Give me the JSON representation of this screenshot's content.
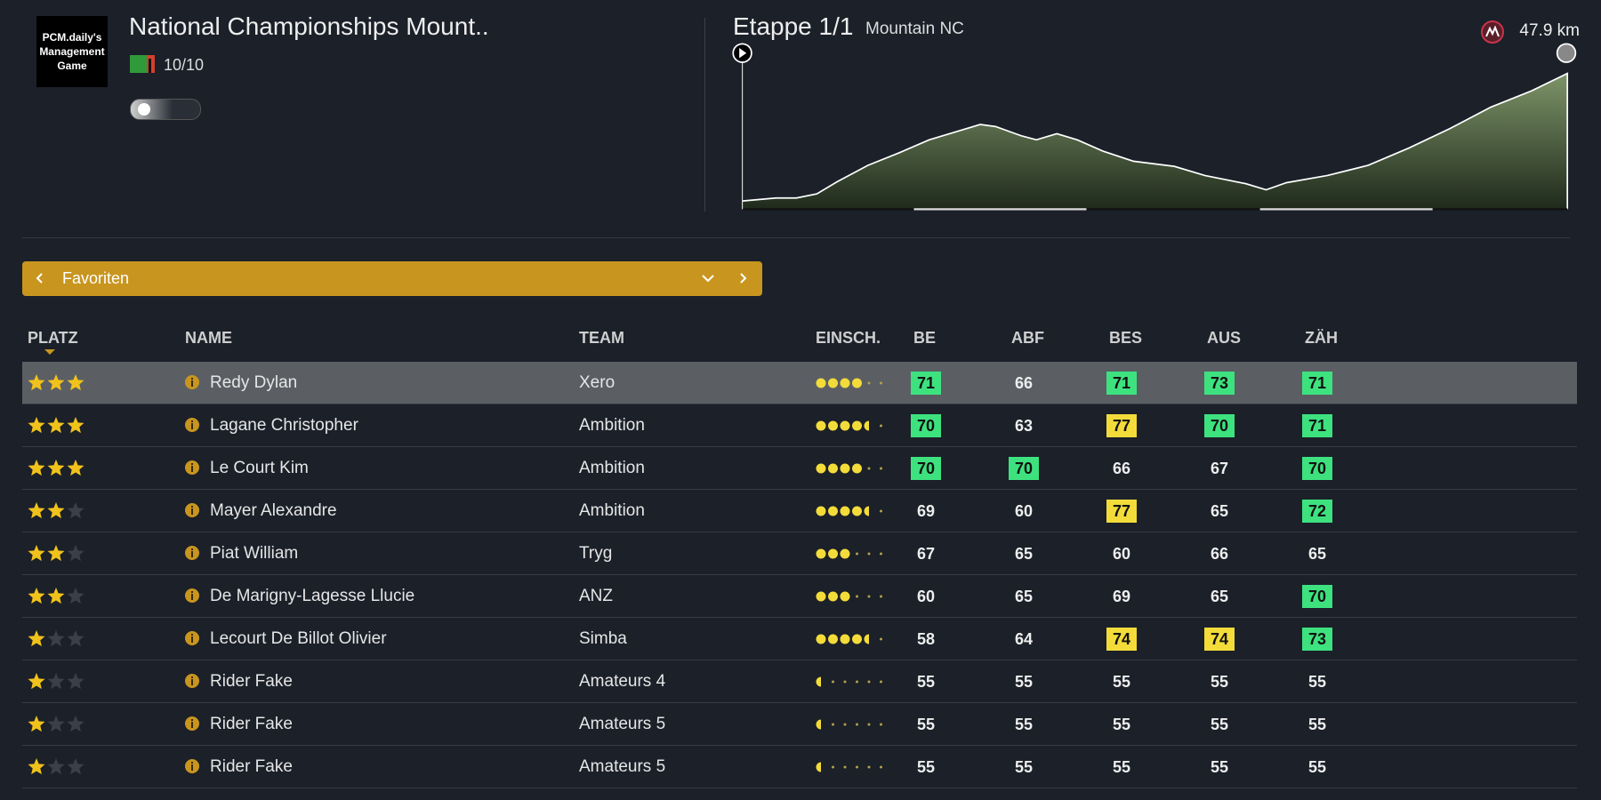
{
  "header": {
    "logo_lines": [
      "PCM.daily's",
      "Management",
      "Game"
    ],
    "title": "National Championships Mount..",
    "rating": "10/10"
  },
  "stage": {
    "name": "Etappe 1/1",
    "type": "Mountain NC",
    "distance": "47.9 km"
  },
  "filter": {
    "label": "Favoriten"
  },
  "table": {
    "columns": [
      "PLATZ",
      "NAME",
      "TEAM",
      "EINSCH.",
      "BE",
      "ABF",
      "BES",
      "AUS",
      "ZÄH"
    ],
    "max_stars": 3,
    "max_form": 6,
    "rows": [
      {
        "stars": 3,
        "name": "Redy Dylan",
        "team": "Xero",
        "form": 4,
        "stats": [
          71,
          66,
          71,
          73,
          71
        ],
        "stat_colors": [
          "#3de27f",
          null,
          "#3de27f",
          "#3de27f",
          "#3de27f"
        ]
      },
      {
        "stars": 3,
        "name": "Lagane Christopher",
        "team": "Ambition",
        "form": 4.5,
        "stats": [
          70,
          63,
          77,
          70,
          71
        ],
        "stat_colors": [
          "#3de27f",
          null,
          "#f3dc3a",
          "#3de27f",
          "#3de27f"
        ]
      },
      {
        "stars": 3,
        "name": "Le Court Kim",
        "team": "Ambition",
        "form": 4,
        "stats": [
          70,
          70,
          66,
          67,
          70
        ],
        "stat_colors": [
          "#3de27f",
          "#3de27f",
          null,
          null,
          "#3de27f"
        ]
      },
      {
        "stars": 2,
        "name": "Mayer Alexandre",
        "team": "Ambition",
        "form": 4.5,
        "stats": [
          69,
          60,
          77,
          65,
          72
        ],
        "stat_colors": [
          null,
          null,
          "#f3dc3a",
          null,
          "#3de27f"
        ]
      },
      {
        "stars": 2,
        "name": "Piat William",
        "team": "Tryg",
        "form": 3,
        "stats": [
          67,
          65,
          60,
          66,
          65
        ],
        "stat_colors": [
          null,
          null,
          null,
          null,
          null
        ]
      },
      {
        "stars": 2,
        "name": "De Marigny-Lagesse Llucie",
        "team": "ANZ",
        "form": 3,
        "stats": [
          60,
          65,
          69,
          65,
          70
        ],
        "stat_colors": [
          null,
          null,
          null,
          null,
          "#3de27f"
        ]
      },
      {
        "stars": 1,
        "name": "Lecourt De Billot Olivier",
        "team": "Simba",
        "form": 4.5,
        "stats": [
          58,
          64,
          74,
          74,
          73
        ],
        "stat_colors": [
          null,
          null,
          "#f3dc3a",
          "#f3dc3a",
          "#3de27f"
        ]
      },
      {
        "stars": 1,
        "name": "Rider Fake",
        "team": "Amateurs 4",
        "form": 0.5,
        "stats": [
          55,
          55,
          55,
          55,
          55
        ],
        "stat_colors": [
          null,
          null,
          null,
          null,
          null
        ]
      },
      {
        "stars": 1,
        "name": "Rider Fake",
        "team": "Amateurs 5",
        "form": 0.5,
        "stats": [
          55,
          55,
          55,
          55,
          55
        ],
        "stat_colors": [
          null,
          null,
          null,
          null,
          null
        ]
      },
      {
        "stars": 1,
        "name": "Rider Fake",
        "team": "Amateurs 5",
        "form": 0.5,
        "stats": [
          55,
          55,
          55,
          55,
          55
        ],
        "stat_colors": [
          null,
          null,
          null,
          null,
          null
        ]
      }
    ]
  }
}
